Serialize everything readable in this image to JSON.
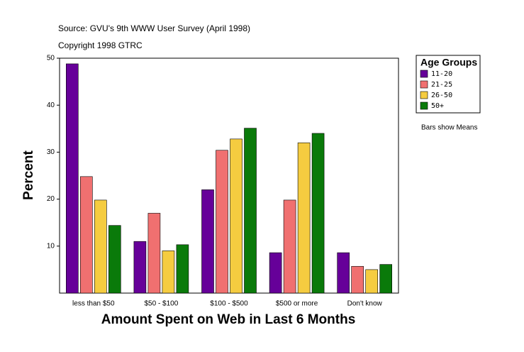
{
  "chart_data": {
    "type": "bar",
    "subtitle": "Source: GVU's 9th WWW User Survey (April 1998)",
    "copyright": "Copyright 1998 GTRC",
    "x_label": "Amount Spent on Web in Last 6 Months",
    "y_label": "Percent",
    "note": "Bars show Means",
    "legend_title": "Age Groups",
    "legend_position": "right",
    "categories": [
      "less than $50",
      "$50 - $100",
      "$100 - $500",
      "$500 or more",
      "Don't know"
    ],
    "series": [
      {
        "name": "11-20",
        "color": "#660099",
        "values": [
          48.8,
          11.0,
          22.0,
          8.6,
          8.6
        ]
      },
      {
        "name": "21-25",
        "color": "#f07070",
        "values": [
          24.8,
          17.0,
          30.4,
          19.8,
          5.7
        ]
      },
      {
        "name": "26-50",
        "color": "#f5cc40",
        "values": [
          19.8,
          9.0,
          32.8,
          32.0,
          5.0
        ]
      },
      {
        "name": "50+",
        "color": "#0a7a0a",
        "values": [
          14.4,
          10.3,
          35.1,
          34.0,
          6.1
        ]
      }
    ],
    "ylim": [
      0,
      50
    ],
    "yticks": [
      10,
      20,
      30,
      40,
      50
    ]
  }
}
